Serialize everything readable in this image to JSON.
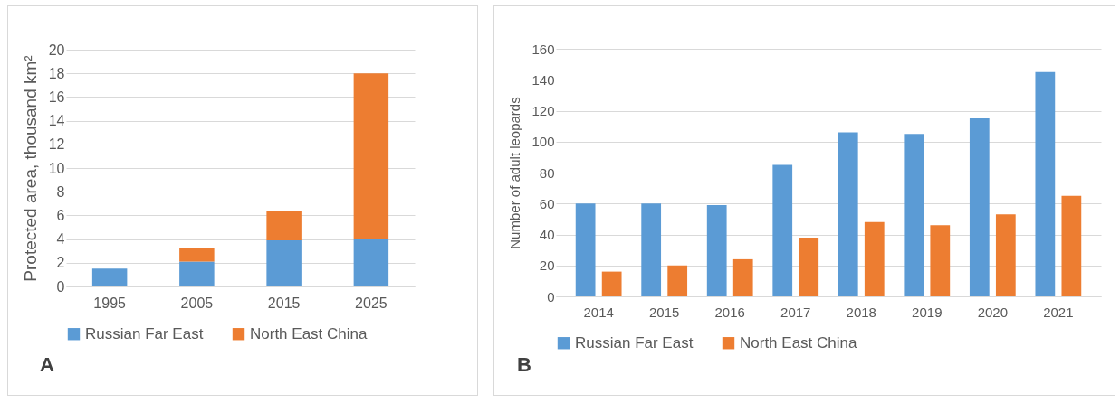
{
  "chart_data": [
    {
      "type": "bar",
      "stacked": true,
      "categories": [
        "1995",
        "2005",
        "2015",
        "2025"
      ],
      "ylabel": "Protected area, thousand km²",
      "ylim": [
        0,
        20
      ],
      "yticks": [
        0,
        2,
        4,
        6,
        8,
        10,
        12,
        14,
        16,
        18,
        20
      ],
      "grid": "y",
      "legend": "bottom",
      "annotations": [
        "A"
      ],
      "series": [
        {
          "name": "Russian Far East",
          "color": "#5b9bd5",
          "values": [
            1.5,
            2.1,
            3.9,
            4.0
          ]
        },
        {
          "name": "North East China",
          "color": "#ed7d31",
          "values": [
            null,
            1.1,
            2.5,
            14.0
          ]
        }
      ]
    },
    {
      "type": "bar",
      "categories": [
        "2014",
        "2015",
        "2016",
        "2017",
        "2018",
        "2019",
        "2020",
        "2021"
      ],
      "ylabel": "Number of adult leopards",
      "ylim": [
        0,
        160
      ],
      "yticks": [
        0,
        20,
        40,
        60,
        80,
        100,
        120,
        140,
        160
      ],
      "grid": "y",
      "legend": "bottom",
      "annotations": [
        "B"
      ],
      "series": [
        {
          "name": "Russian Far East",
          "color": "#5b9bd5",
          "values": [
            60,
            60,
            59,
            85,
            106,
            105,
            115,
            145
          ]
        },
        {
          "name": "North East China",
          "color": "#ed7d31",
          "values": [
            16,
            20,
            24,
            38,
            48,
            46,
            53,
            65
          ]
        }
      ]
    }
  ]
}
